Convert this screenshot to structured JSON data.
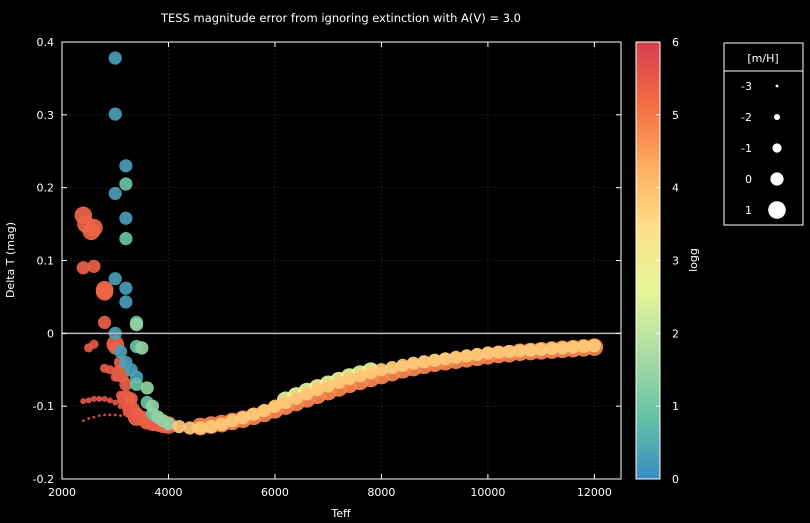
{
  "chart_data": {
    "type": "scatter",
    "title": "TESS magnitude error from ignoring extinction with A(V) = 3.0",
    "xlabel": "Teff",
    "ylabel": "Delta T (mag)",
    "xlim": [
      2000,
      12500
    ],
    "ylim": [
      -0.2,
      0.4
    ],
    "xticks": [
      "2000",
      "4000",
      "6000",
      "8000",
      "10000",
      "12000"
    ],
    "yticks": [
      "-0.2",
      "-0.1",
      "0",
      "0.1",
      "0.2",
      "0.3",
      "0.4"
    ],
    "grid": true,
    "reference_line_y": 0,
    "colorbar": {
      "label": "logg",
      "range": [
        0,
        6
      ],
      "ticks": [
        "0",
        "1",
        "2",
        "3",
        "4",
        "5",
        "6"
      ],
      "colors": [
        "#3b8ac4",
        "#66c2a5",
        "#abdda4",
        "#e6f598",
        "#fee08b",
        "#fdae61",
        "#f46d43",
        "#d53e4f"
      ]
    },
    "size_legend": {
      "title": "[m/H]",
      "entries": [
        {
          "label": "-3",
          "mh": -3
        },
        {
          "label": "-2",
          "mh": -2
        },
        {
          "label": "-1",
          "mh": -1
        },
        {
          "label": "0",
          "mh": 0
        },
        {
          "label": "1",
          "mh": 1
        }
      ]
    },
    "point_groups": [
      {
        "logg": 5.6,
        "mh": -3,
        "points": [
          [
            2400,
            -0.12
          ],
          [
            2500,
            -0.117
          ],
          [
            2600,
            -0.115
          ],
          [
            2700,
            -0.113
          ],
          [
            2800,
            -0.112
          ],
          [
            2900,
            -0.112
          ],
          [
            3000,
            -0.112
          ],
          [
            3100,
            -0.113
          ]
        ]
      },
      {
        "logg": 5.6,
        "mh": -2,
        "points": [
          [
            2400,
            -0.093
          ],
          [
            2500,
            -0.092
          ],
          [
            2600,
            -0.09
          ],
          [
            2700,
            -0.09
          ],
          [
            2800,
            -0.09
          ],
          [
            2900,
            -0.092
          ],
          [
            3000,
            -0.095
          ],
          [
            3100,
            -0.1
          ],
          [
            3200,
            -0.11
          ]
        ]
      },
      {
        "logg": 5.5,
        "mh": -1,
        "points": [
          [
            2500,
            -0.02
          ],
          [
            2600,
            -0.015
          ],
          [
            2800,
            -0.048
          ],
          [
            2900,
            -0.05
          ],
          [
            3000,
            -0.06
          ],
          [
            3100,
            -0.085
          ],
          [
            3200,
            -0.1
          ],
          [
            3300,
            -0.11
          ],
          [
            3400,
            -0.115
          ]
        ]
      },
      {
        "logg": 5.4,
        "mh": 0,
        "points": [
          [
            2400,
            0.09
          ],
          [
            2600,
            0.092
          ],
          [
            2800,
            0.015
          ],
          [
            3000,
            -0.02
          ],
          [
            3100,
            -0.04
          ],
          [
            3200,
            -0.07
          ],
          [
            3300,
            -0.09
          ],
          [
            3400,
            -0.11
          ],
          [
            3500,
            -0.115
          ],
          [
            3600,
            -0.118
          ],
          [
            3700,
            -0.122
          ],
          [
            3800,
            -0.122
          ]
        ]
      },
      {
        "logg": 5.3,
        "mh": 1,
        "points": [
          [
            2400,
            0.162
          ],
          [
            2450,
            0.15
          ],
          [
            2550,
            0.14
          ],
          [
            2600,
            0.145
          ],
          [
            2800,
            0.057
          ],
          [
            2800,
            0.06
          ],
          [
            3000,
            -0.015
          ],
          [
            3100,
            -0.055
          ],
          [
            3200,
            -0.09
          ],
          [
            3300,
            -0.105
          ],
          [
            3400,
            -0.115
          ],
          [
            3600,
            -0.12
          ],
          [
            3700,
            -0.122
          ],
          [
            3800,
            -0.123
          ],
          [
            3900,
            -0.125
          ],
          [
            4000,
            -0.126
          ]
        ]
      },
      {
        "logg": 0.3,
        "mh": 0,
        "points": [
          [
            3000,
            0.378
          ],
          [
            3000,
            0.301
          ],
          [
            3200,
            0.23
          ],
          [
            3000,
            0.192
          ],
          [
            3200,
            0.158
          ],
          [
            3200,
            0.062
          ],
          [
            3200,
            0.043
          ],
          [
            3000,
            0.075
          ],
          [
            3000,
            0.0
          ],
          [
            3100,
            -0.025
          ],
          [
            3200,
            -0.04
          ],
          [
            3300,
            -0.05
          ],
          [
            3400,
            -0.06
          ]
        ]
      },
      {
        "logg": 0.9,
        "mh": 0,
        "points": [
          [
            3200,
            0.205
          ],
          [
            3200,
            0.13
          ],
          [
            3400,
            0.015
          ],
          [
            3400,
            -0.018
          ],
          [
            3400,
            -0.07
          ],
          [
            3600,
            -0.095
          ],
          [
            3700,
            -0.11
          ],
          [
            3800,
            -0.115
          ]
        ]
      },
      {
        "logg": 1.4,
        "mh": 0,
        "points": [
          [
            3400,
            0.012
          ],
          [
            3500,
            -0.02
          ],
          [
            3600,
            -0.075
          ],
          [
            3700,
            -0.1
          ],
          [
            3800,
            -0.115
          ],
          [
            3900,
            -0.12
          ],
          [
            4000,
            -0.124
          ]
        ]
      },
      {
        "logg": 3.8,
        "mh": 0,
        "points": [
          [
            4200,
            -0.128
          ],
          [
            4400,
            -0.13
          ],
          [
            4600,
            -0.13
          ],
          [
            4800,
            -0.128
          ],
          [
            5000,
            -0.125
          ],
          [
            5200,
            -0.12
          ],
          [
            5400,
            -0.116
          ],
          [
            5600,
            -0.111
          ],
          [
            5800,
            -0.106
          ],
          [
            6000,
            -0.1
          ],
          [
            6200,
            -0.095
          ],
          [
            6400,
            -0.089
          ],
          [
            6600,
            -0.083
          ],
          [
            6800,
            -0.077
          ],
          [
            7000,
            -0.072
          ],
          [
            7200,
            -0.067
          ],
          [
            7400,
            -0.062
          ],
          [
            7600,
            -0.058
          ],
          [
            7800,
            -0.054
          ],
          [
            8000,
            -0.05
          ],
          [
            8200,
            -0.047
          ],
          [
            8400,
            -0.044
          ],
          [
            8600,
            -0.041
          ],
          [
            8800,
            -0.039
          ],
          [
            9000,
            -0.037
          ],
          [
            9200,
            -0.035
          ],
          [
            9400,
            -0.033
          ],
          [
            9600,
            -0.031
          ],
          [
            9800,
            -0.029
          ],
          [
            10000,
            -0.027
          ],
          [
            10200,
            -0.026
          ],
          [
            10400,
            -0.025
          ],
          [
            10600,
            -0.024
          ],
          [
            10800,
            -0.023
          ],
          [
            11000,
            -0.022
          ],
          [
            11200,
            -0.021
          ],
          [
            11400,
            -0.02
          ],
          [
            11600,
            -0.019
          ],
          [
            11800,
            -0.018
          ],
          [
            12000,
            -0.017
          ]
        ]
      },
      {
        "logg": 2.6,
        "mh": 1,
        "points": [
          [
            6200,
            -0.092
          ],
          [
            6400,
            -0.086
          ],
          [
            6600,
            -0.08
          ],
          [
            6800,
            -0.075
          ],
          [
            7000,
            -0.07
          ],
          [
            7200,
            -0.065
          ],
          [
            7400,
            -0.06
          ],
          [
            7600,
            -0.056
          ],
          [
            7800,
            -0.052
          ]
        ]
      },
      {
        "logg": 4.8,
        "mh": 1,
        "points": [
          [
            4600,
            -0.128
          ],
          [
            4800,
            -0.126
          ],
          [
            5000,
            -0.124
          ],
          [
            5200,
            -0.121
          ],
          [
            5400,
            -0.118
          ],
          [
            5600,
            -0.114
          ],
          [
            5800,
            -0.11
          ],
          [
            6000,
            -0.105
          ],
          [
            6200,
            -0.1
          ],
          [
            6400,
            -0.095
          ],
          [
            6600,
            -0.09
          ],
          [
            6800,
            -0.085
          ],
          [
            7000,
            -0.08
          ],
          [
            7200,
            -0.075
          ],
          [
            7400,
            -0.07
          ],
          [
            7600,
            -0.066
          ],
          [
            7800,
            -0.062
          ],
          [
            8000,
            -0.058
          ],
          [
            8200,
            -0.054
          ],
          [
            8400,
            -0.05
          ],
          [
            8600,
            -0.047
          ],
          [
            8800,
            -0.044
          ],
          [
            9000,
            -0.041
          ],
          [
            9200,
            -0.039
          ],
          [
            9400,
            -0.037
          ],
          [
            9600,
            -0.035
          ],
          [
            9800,
            -0.033
          ],
          [
            10000,
            -0.031
          ],
          [
            10200,
            -0.029
          ],
          [
            10400,
            -0.028
          ],
          [
            10600,
            -0.026
          ],
          [
            10800,
            -0.025
          ],
          [
            11000,
            -0.024
          ],
          [
            11200,
            -0.023
          ],
          [
            11400,
            -0.022
          ],
          [
            11600,
            -0.021
          ],
          [
            11800,
            -0.02
          ],
          [
            12000,
            -0.019
          ]
        ]
      }
    ]
  }
}
